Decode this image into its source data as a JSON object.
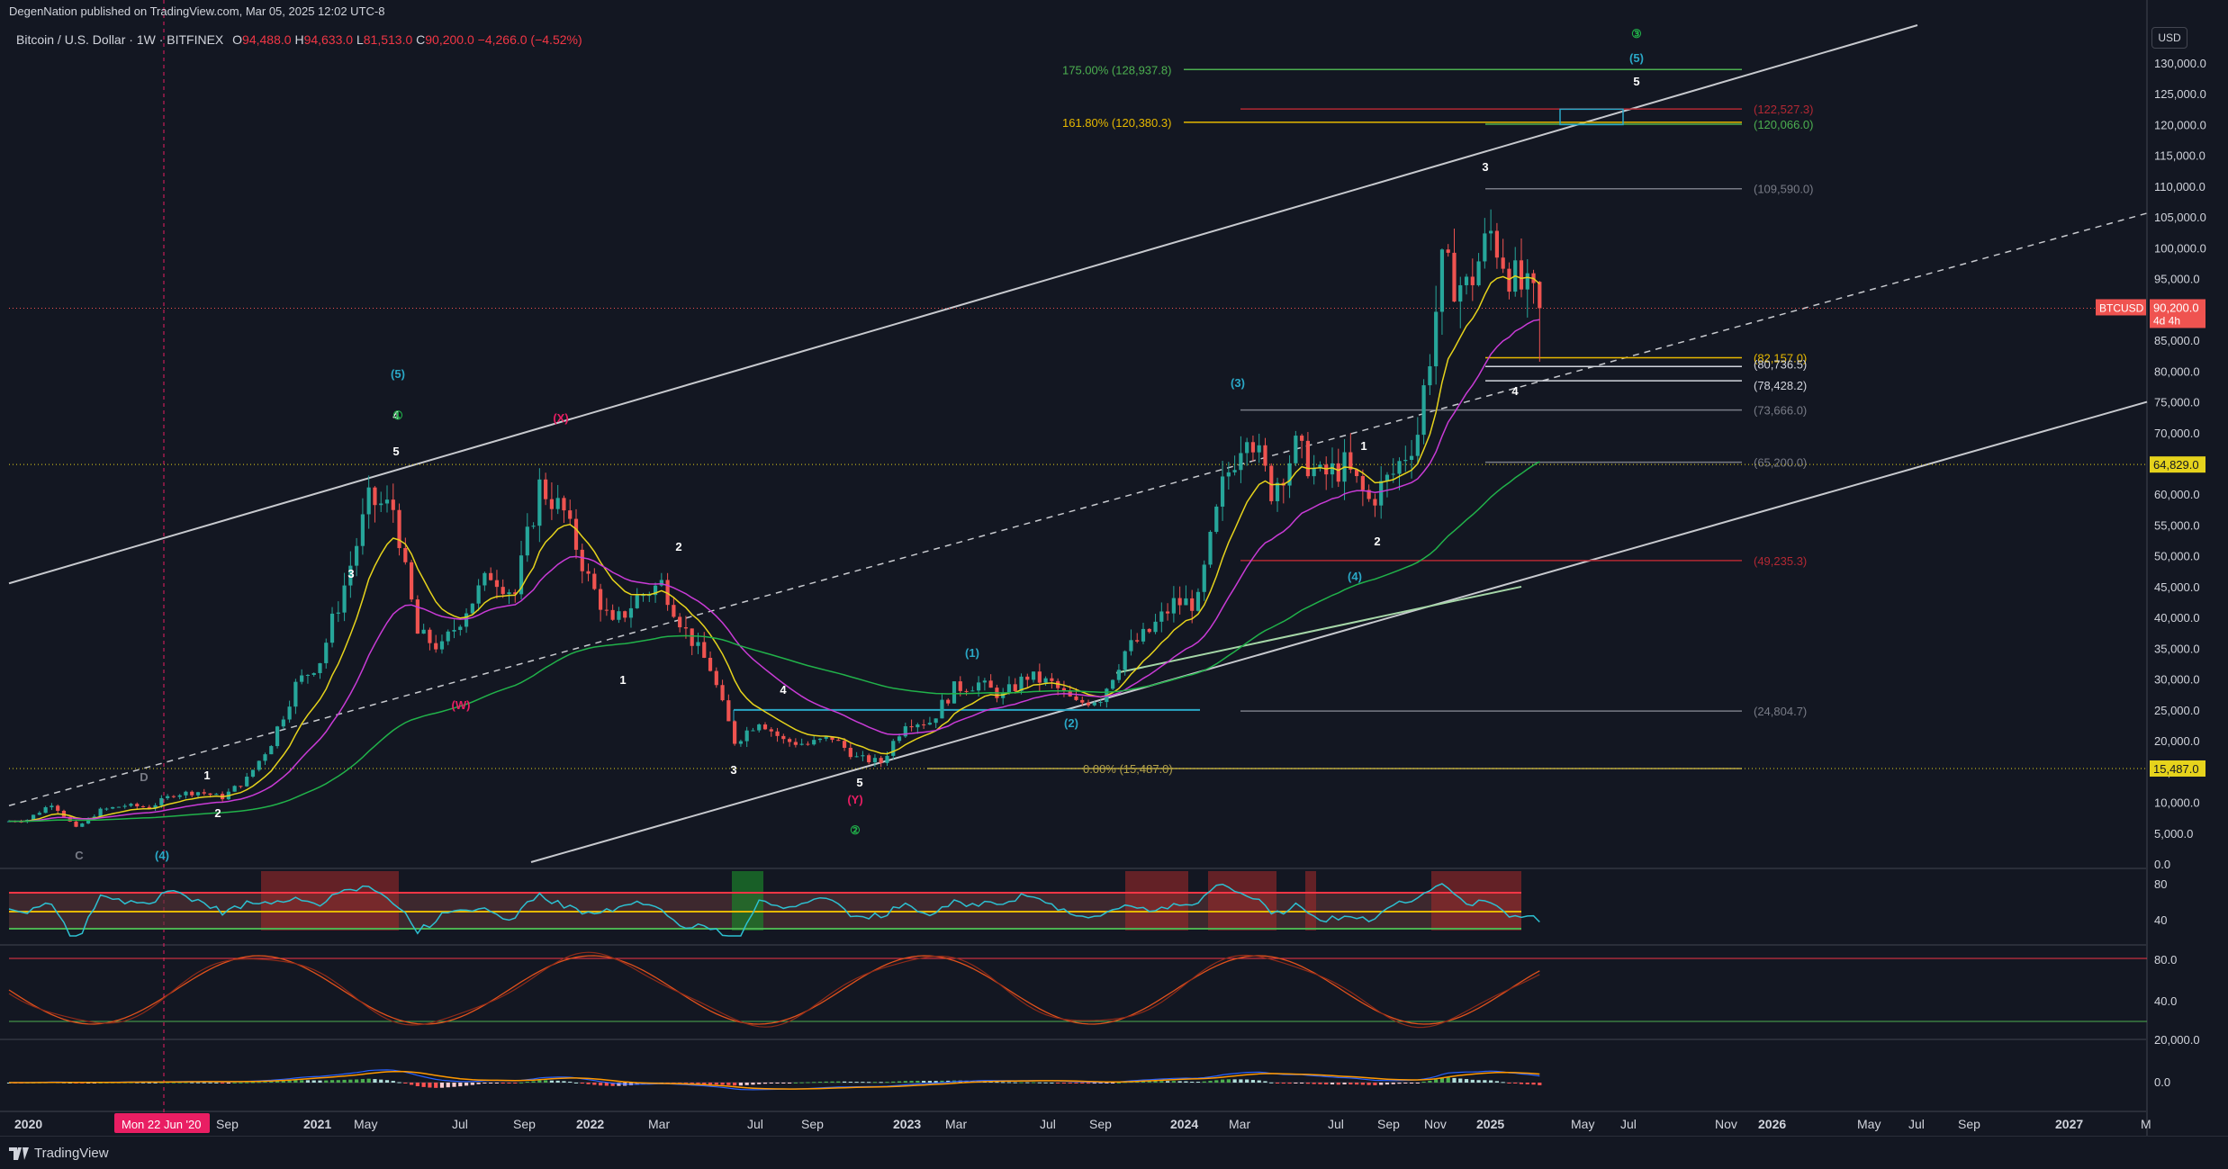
{
  "header": {
    "published": "DegenNation published on TradingView.com, Mar 05, 2025 12:02 UTC-8",
    "symbol": "Bitcoin / U.S. Dollar · 1W · BITFINEX",
    "open_label": "O",
    "open": "94,488.0",
    "high_label": "H",
    "high": "94,633.0",
    "low_label": "L",
    "low": "81,513.0",
    "close_label": "C",
    "close": "90,200.0",
    "change": "−4,266.0 (−4.52%)",
    "currency": "USD"
  },
  "footer": {
    "brand": "TradingView"
  },
  "colors": {
    "background": "#131722",
    "up": "#26a69a",
    "down": "#ef5350",
    "ema_short": "#e6d31c",
    "ema_mid": "#c93bd6",
    "ema_long": "#21b24a",
    "fib_line": "#b1a04a",
    "red_level": "#b22833",
    "cyan_box": "#2aa8c7",
    "rsi_line": "#2dc0d1",
    "stoch_line": "#e0511c"
  },
  "chart_data": {
    "type": "candlestick",
    "x_axis": {
      "ticks": [
        "2020",
        "Mar",
        "May",
        "Jul",
        "Sep",
        "2021",
        "Mar",
        "May",
        "Jul",
        "Sep",
        "2022",
        "Mar",
        "May",
        "Jul",
        "Sep",
        "2023",
        "Mar",
        "May",
        "Jul",
        "Sep",
        "2024",
        "Mar",
        "May",
        "Jul",
        "Sep",
        "Nov",
        "2025",
        "Mar",
        "May",
        "Jul",
        "Sep",
        "Nov",
        "2026",
        "Mar",
        "May",
        "Jul",
        "Sep",
        "2027",
        "Mar"
      ],
      "visible_labels": [
        "2020",
        "Mar",
        "Sep",
        "2021",
        "May",
        "Jul",
        "Sep",
        "2022",
        "Mar",
        "Jul",
        "Sep",
        "2023",
        "Mar",
        "Jul",
        "Sep",
        "2024",
        "Mar",
        "Jul",
        "Sep",
        "Nov",
        "2025",
        "May",
        "Jul",
        "Nov",
        "2026",
        "May",
        "Jul",
        "Sep",
        "2027",
        "M"
      ],
      "crosshair_label": "Mon 22 Jun '20"
    },
    "y_axis": {
      "scale": "linear",
      "range": [
        0,
        130000
      ],
      "ticks": [
        "130,000.0",
        "125,000.0",
        "120,000.0",
        "115,000.0",
        "110,000.0",
        "105,000.0",
        "100,000.0",
        "95,000.0",
        "90,000.0",
        "85,000.0",
        "80,000.0",
        "75,000.0",
        "70,000.0",
        "65,000.0",
        "60,000.0",
        "55,000.0",
        "50,000.0",
        "45,000.0",
        "40,000.0",
        "35,000.0",
        "30,000.0",
        "25,000.0",
        "20,000.0",
        "15,000.0",
        "10,000.0",
        "5,000.0",
        "0.0"
      ]
    },
    "price_tags": [
      {
        "label": "BTCUSD",
        "value": "90,200.0",
        "sub": "4d 4h",
        "price": 90200
      },
      {
        "value": "64,829.0",
        "price": 64829
      },
      {
        "value": "15,487.0",
        "price": 15487
      }
    ],
    "weekly_closes": [
      {
        "date": "2020-01",
        "close": 7200
      },
      {
        "date": "2020-02",
        "close": 9800
      },
      {
        "date": "2020-03",
        "close": 5800
      },
      {
        "date": "2020-04",
        "close": 8700
      },
      {
        "date": "2020-05",
        "close": 9500
      },
      {
        "date": "2020-06",
        "close": 9200
      },
      {
        "date": "2020-07",
        "close": 11300
      },
      {
        "date": "2020-08",
        "close": 11700
      },
      {
        "date": "2020-09",
        "close": 10800
      },
      {
        "date": "2020-10",
        "close": 13800
      },
      {
        "date": "2020-11",
        "close": 19700
      },
      {
        "date": "2020-12",
        "close": 29000
      },
      {
        "date": "2021-01",
        "close": 33100
      },
      {
        "date": "2021-02",
        "close": 45200
      },
      {
        "date": "2021-03",
        "close": 58800
      },
      {
        "date": "2021-04",
        "close": 57700
      },
      {
        "date": "2021-05",
        "close": 37300
      },
      {
        "date": "2021-06",
        "close": 35000
      },
      {
        "date": "2021-07",
        "close": 41500
      },
      {
        "date": "2021-08",
        "close": 47100
      },
      {
        "date": "2021-09",
        "close": 43800
      },
      {
        "date": "2021-10",
        "close": 61300
      },
      {
        "date": "2021-11",
        "close": 57000
      },
      {
        "date": "2021-12",
        "close": 46200
      },
      {
        "date": "2022-01",
        "close": 38500
      },
      {
        "date": "2022-02",
        "close": 43200
      },
      {
        "date": "2022-03",
        "close": 45500
      },
      {
        "date": "2022-04",
        "close": 37700
      },
      {
        "date": "2022-05",
        "close": 31800
      },
      {
        "date": "2022-06",
        "close": 19900
      },
      {
        "date": "2022-07",
        "close": 23300
      },
      {
        "date": "2022-08",
        "close": 20000
      },
      {
        "date": "2022-09",
        "close": 19400
      },
      {
        "date": "2022-10",
        "close": 20500
      },
      {
        "date": "2022-11",
        "close": 17200
      },
      {
        "date": "2022-12",
        "close": 16500
      },
      {
        "date": "2023-01",
        "close": 23100
      },
      {
        "date": "2023-02",
        "close": 23100
      },
      {
        "date": "2023-03",
        "close": 28500
      },
      {
        "date": "2023-04",
        "close": 29300
      },
      {
        "date": "2023-05",
        "close": 27200
      },
      {
        "date": "2023-06",
        "close": 30500
      },
      {
        "date": "2023-07",
        "close": 29200
      },
      {
        "date": "2023-08",
        "close": 26000
      },
      {
        "date": "2023-09",
        "close": 27000
      },
      {
        "date": "2023-10",
        "close": 34500
      },
      {
        "date": "2023-11",
        "close": 37700
      },
      {
        "date": "2023-12",
        "close": 42300
      },
      {
        "date": "2024-01",
        "close": 42500
      },
      {
        "date": "2024-02",
        "close": 61200
      },
      {
        "date": "2024-03",
        "close": 71300
      },
      {
        "date": "2024-04",
        "close": 60700
      },
      {
        "date": "2024-05",
        "close": 67500
      },
      {
        "date": "2024-06",
        "close": 62700
      },
      {
        "date": "2024-07",
        "close": 64600
      },
      {
        "date": "2024-08",
        "close": 58900
      },
      {
        "date": "2024-09",
        "close": 63300
      },
      {
        "date": "2024-10",
        "close": 70200
      },
      {
        "date": "2024-11",
        "close": 96400
      },
      {
        "date": "2024-12",
        "close": 93400
      },
      {
        "date": "2025-01",
        "close": 102400
      },
      {
        "date": "2025-02",
        "close": 94488
      },
      {
        "date": "2025-03",
        "close": 90200
      }
    ],
    "levels": [
      {
        "label": "175.00% (128,937.8)",
        "price": 128937.8,
        "color": "#4caf50"
      },
      {
        "label": "161.80% (120,380.3)",
        "price": 120380.3,
        "color": "#e6b800"
      },
      {
        "label": "(122,527.3)",
        "price": 122527.3,
        "color": "#b22833"
      },
      {
        "label": "(120,066.0)",
        "price": 120066.0,
        "color": "#4caf50"
      },
      {
        "label": "(109,590.0)",
        "price": 109590.0,
        "color": "#787b86"
      },
      {
        "label": "(82,157.0)",
        "price": 82157.0,
        "color": "#e6b800"
      },
      {
        "label": "(80,736.5)",
        "price": 80736.5,
        "color": "#d1d4dc"
      },
      {
        "label": "(78,428.2)",
        "price": 78428.2,
        "color": "#d1d4dc"
      },
      {
        "label": "(73,666.0)",
        "price": 73666.0,
        "color": "#787b86"
      },
      {
        "label": "(65,200.0)",
        "price": 65200.0,
        "color": "#787b86"
      },
      {
        "label": "(49,235.3)",
        "price": 49235.3,
        "color": "#b22833"
      },
      {
        "label": "(24,804.7)",
        "price": 24804.7,
        "color": "#787b86"
      },
      {
        "label": "0.00% (15,487.0)",
        "price": 15487.0,
        "color": "#b1a04a"
      }
    ],
    "wave_labels": [
      {
        "text": "D",
        "color": "#787b86"
      },
      {
        "text": "C",
        "color": "#787b86"
      },
      {
        "text": "(4)",
        "color": "#2aa8c7"
      },
      {
        "text": "1",
        "color": "#ffffff"
      },
      {
        "text": "2",
        "color": "#ffffff"
      },
      {
        "text": "3",
        "color": "#ffffff"
      },
      {
        "text": "4",
        "color": "#ffffff"
      },
      {
        "text": "5",
        "color": "#ffffff"
      },
      {
        "text": "(5)",
        "color": "#2aa8c7"
      },
      {
        "text": "①",
        "color": "#21b24a"
      },
      {
        "text": "(X)",
        "color": "#e91e63"
      },
      {
        "text": "(W)",
        "color": "#e91e63"
      },
      {
        "text": "2",
        "color": "#ffffff"
      },
      {
        "text": "1",
        "color": "#ffffff"
      },
      {
        "text": "3",
        "color": "#ffffff"
      },
      {
        "text": "4",
        "color": "#ffffff"
      },
      {
        "text": "5",
        "color": "#ffffff"
      },
      {
        "text": "(Y)",
        "color": "#e91e63"
      },
      {
        "text": "②",
        "color": "#21b24a"
      },
      {
        "text": "(1)",
        "color": "#2aa8c7"
      },
      {
        "text": "(2)",
        "color": "#2aa8c7"
      },
      {
        "text": "(3)",
        "color": "#2aa8c7"
      },
      {
        "text": "1",
        "color": "#ffffff"
      },
      {
        "text": "2",
        "color": "#ffffff"
      },
      {
        "text": "(4)",
        "color": "#2aa8c7"
      },
      {
        "text": "3",
        "color": "#ffffff"
      },
      {
        "text": "4",
        "color": "#ffffff"
      },
      {
        "text": "5",
        "color": "#ffffff"
      },
      {
        "text": "(5)",
        "color": "#2aa8c7"
      },
      {
        "text": "③",
        "color": "#21b24a"
      }
    ],
    "rsi_panel": {
      "ticks": [
        "80",
        "40"
      ]
    },
    "stoch_panel": {
      "ticks": [
        "80.0",
        "40.0"
      ]
    },
    "macd_panel": {
      "ticks": [
        "20,000.0",
        "0.0"
      ]
    },
    "legend": "none",
    "grid": false
  }
}
